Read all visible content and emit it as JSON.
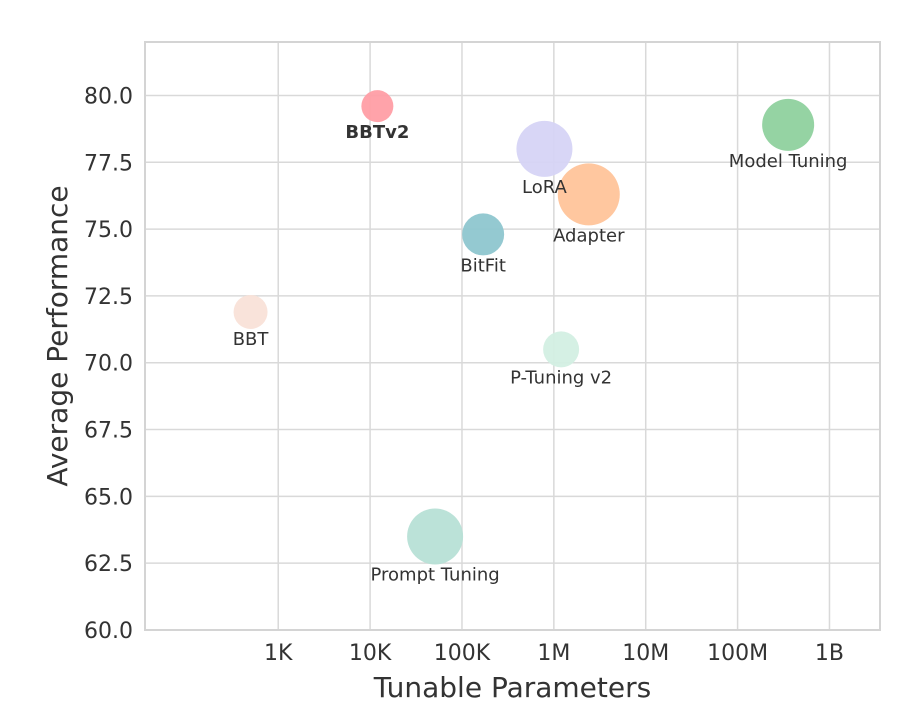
{
  "chart_data": {
    "type": "scatter",
    "title": "",
    "xlabel": "Tunable Parameters",
    "ylabel": "Average Performance",
    "x_scale": "log",
    "xlim_log10": [
      1.55,
      9.55
    ],
    "ylim": [
      60.0,
      82.0
    ],
    "x_ticks": [
      {
        "label": "1K",
        "log10": 3
      },
      {
        "label": "10K",
        "log10": 4
      },
      {
        "label": "100K",
        "log10": 5
      },
      {
        "label": "1M",
        "log10": 6
      },
      {
        "label": "10M",
        "log10": 7
      },
      {
        "label": "100M",
        "log10": 8
      },
      {
        "label": "1B",
        "log10": 9
      }
    ],
    "y_ticks": [
      {
        "value": 60.0,
        "label": "60.0"
      },
      {
        "value": 62.5,
        "label": "62.5"
      },
      {
        "value": 65.0,
        "label": "65.0"
      },
      {
        "value": 67.5,
        "label": "67.5"
      },
      {
        "value": 70.0,
        "label": "70.0"
      },
      {
        "value": 72.5,
        "label": "72.5"
      },
      {
        "value": 75.0,
        "label": "75.0"
      },
      {
        "value": 77.5,
        "label": "77.5"
      },
      {
        "value": 80.0,
        "label": "80.0"
      }
    ],
    "grid": true,
    "points": [
      {
        "name": "BBTv2",
        "params": 12000,
        "performance": 79.6,
        "color": "#ff9ea5",
        "size": 16,
        "label_color": "#e06b6b",
        "highlight": true
      },
      {
        "name": "Model Tuning",
        "params": 355000000,
        "performance": 78.9,
        "color": "#8fd19e",
        "size": 26,
        "label_color": "#333333",
        "highlight": false
      },
      {
        "name": "LoRA",
        "params": 790000,
        "performance": 78.0,
        "color": "#d6d4f5",
        "size": 28,
        "label_color": "#333333",
        "highlight": false
      },
      {
        "name": "Adapter",
        "params": 2400000,
        "performance": 76.3,
        "color": "#ffc49a",
        "size": 31,
        "label_color": "#333333",
        "highlight": false
      },
      {
        "name": "BitFit",
        "params": 170000,
        "performance": 74.8,
        "color": "#8ec6cf",
        "size": 21,
        "label_color": "#333333",
        "highlight": false
      },
      {
        "name": "BBT",
        "params": 500,
        "performance": 71.9,
        "color": "#f9e2d8",
        "size": 17,
        "label_color": "#333333",
        "highlight": false
      },
      {
        "name": "P-Tuning v2",
        "params": 1200000,
        "performance": 70.5,
        "color": "#d3efe3",
        "size": 18,
        "label_color": "#333333",
        "highlight": false
      },
      {
        "name": "Prompt Tuning",
        "params": 51000,
        "performance": 63.5,
        "color": "#b7e0d6",
        "size": 28,
        "label_color": "#333333",
        "highlight": false
      }
    ]
  }
}
